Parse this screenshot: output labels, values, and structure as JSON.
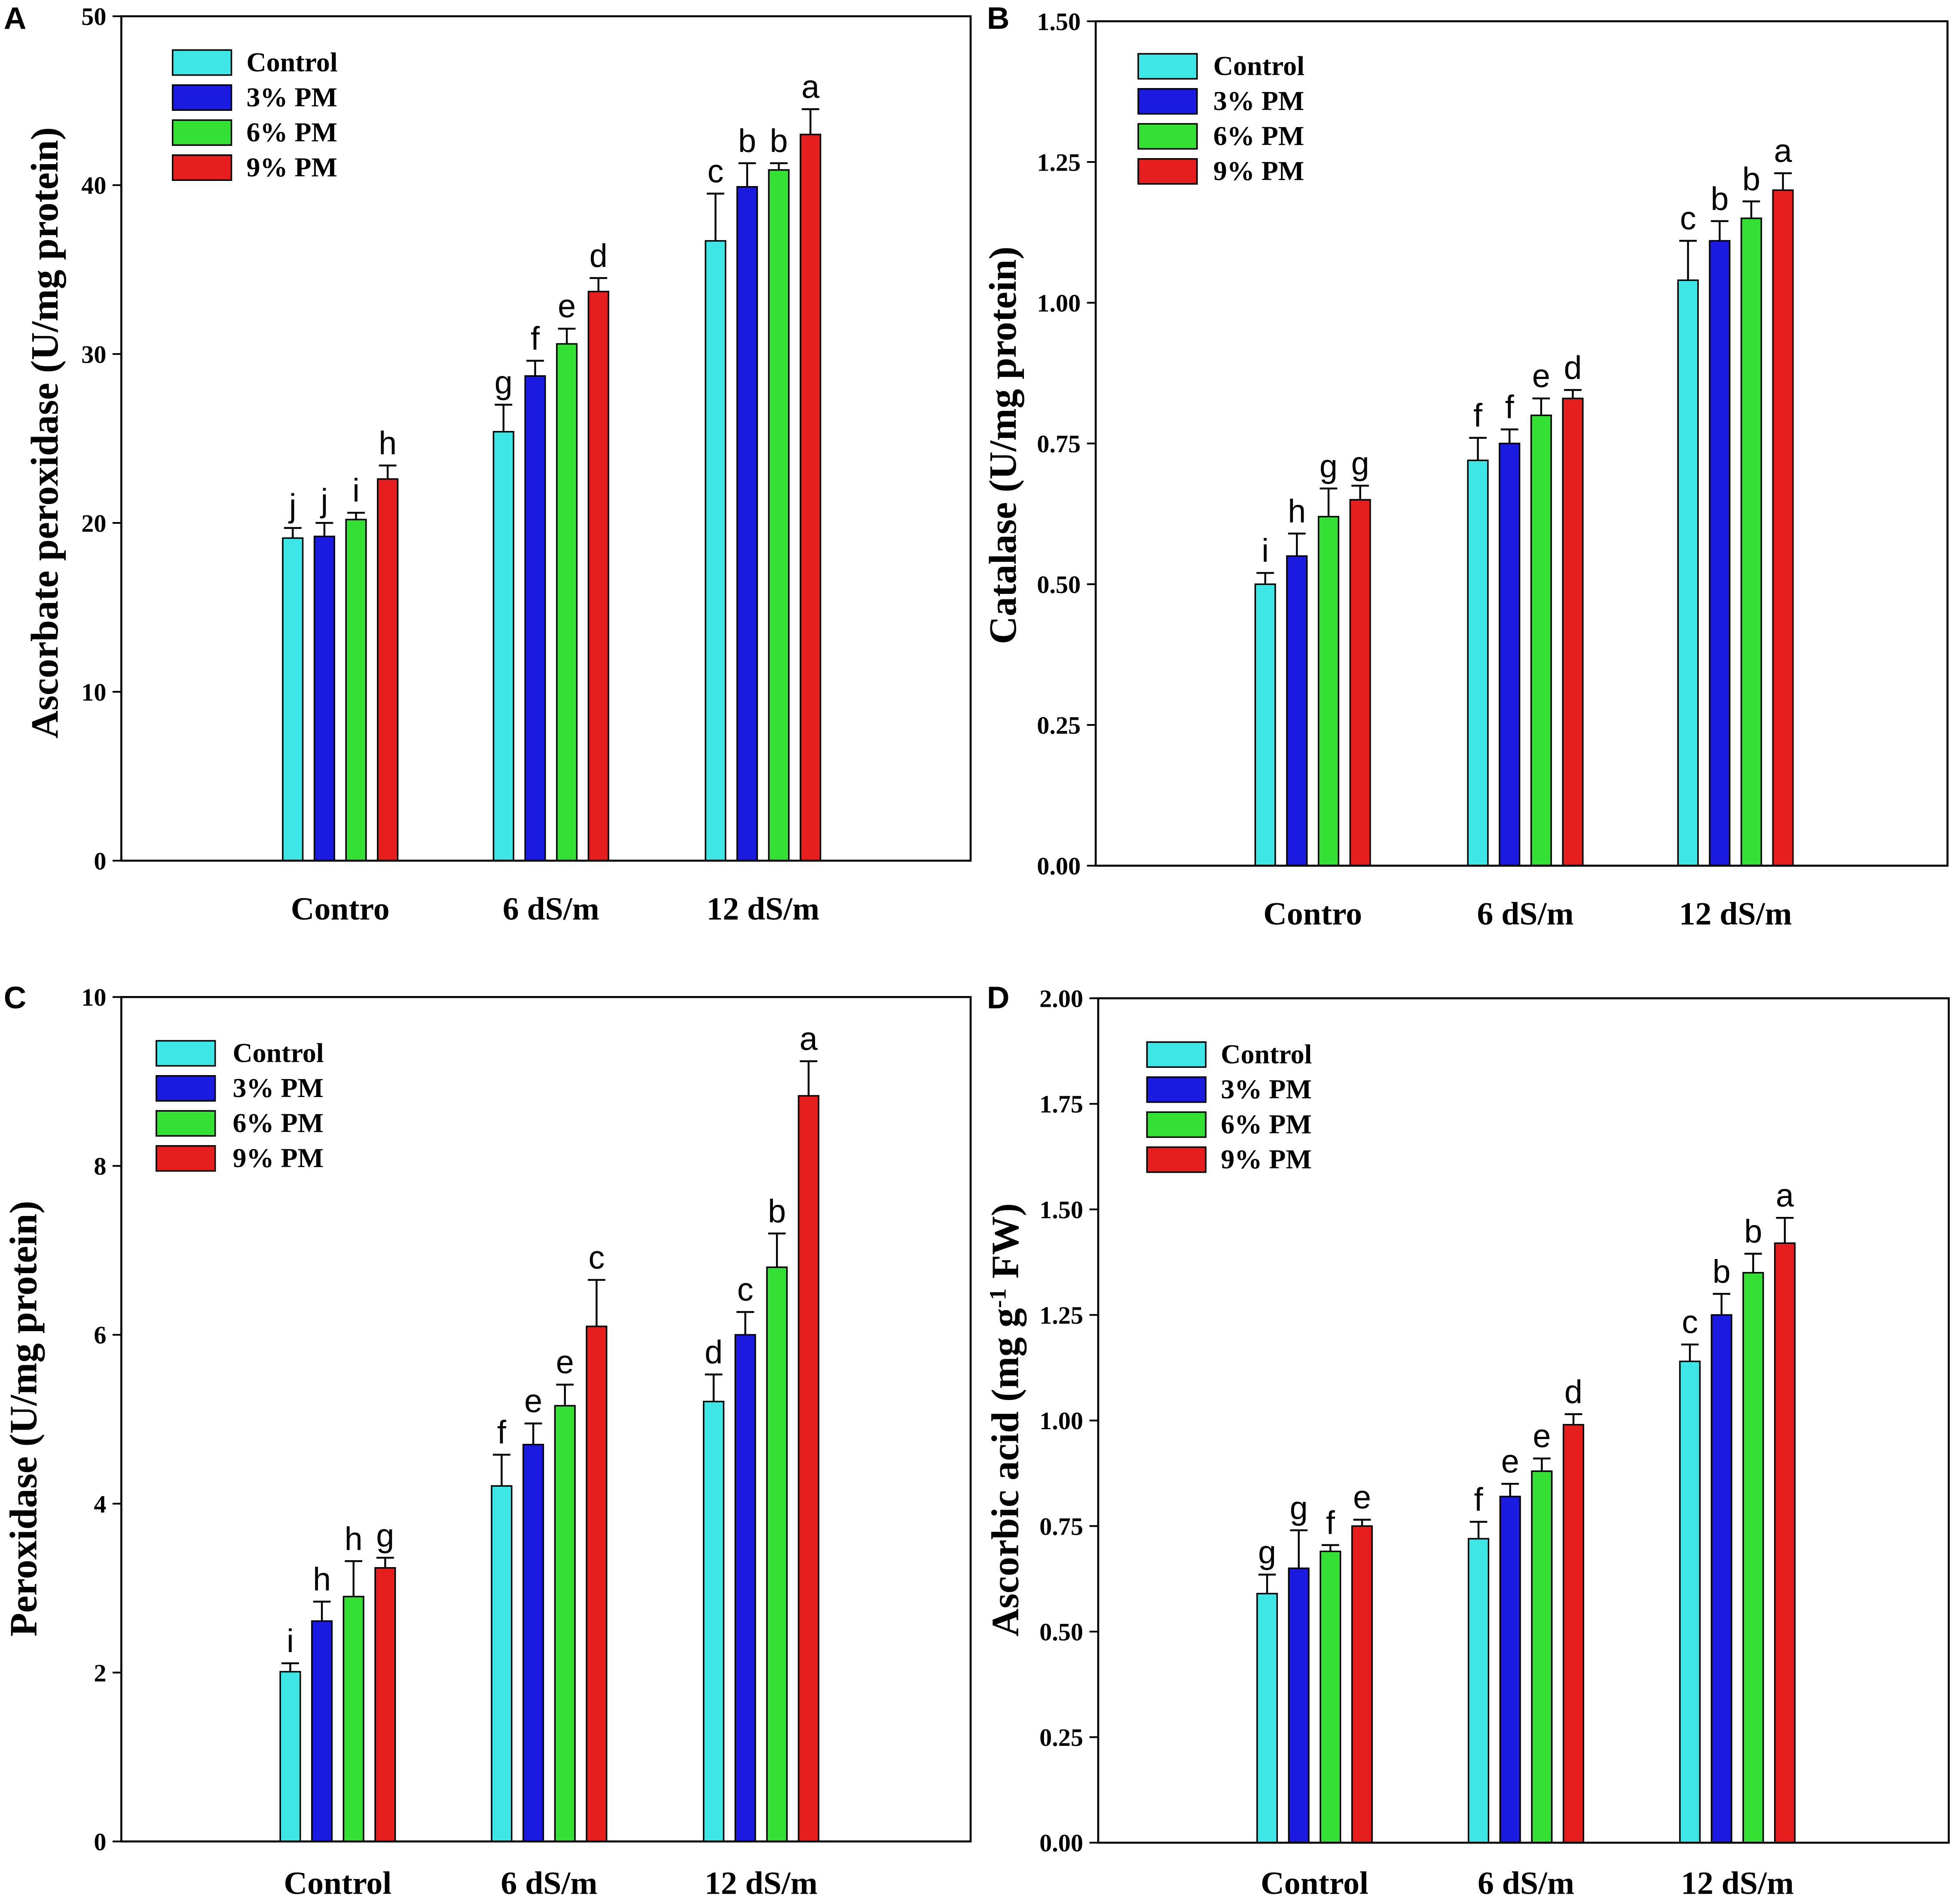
{
  "chart_data": [
    {
      "panel": "A",
      "type": "bar",
      "ylabel": "Ascorbate peroxidase (U/mg protein)",
      "ylim": [
        0,
        50
      ],
      "yticks": [
        "0",
        "10",
        "20",
        "30",
        "40",
        "50"
      ],
      "categories": [
        "Contro",
        "6 dS/m",
        "12 dS/m"
      ],
      "legend": "top-left",
      "grid": false,
      "series": [
        {
          "name": "Control",
          "color": "#3ee6e6",
          "values": [
            19.1,
            25.4,
            36.7
          ],
          "errors": [
            0.6,
            1.6,
            2.8
          ],
          "letters": [
            "j",
            "g",
            "c"
          ]
        },
        {
          "name": "3% PM",
          "color": "#1a1ae0",
          "values": [
            19.2,
            28.7,
            39.9
          ],
          "errors": [
            0.8,
            0.9,
            1.4
          ],
          "letters": [
            "j",
            "f",
            "b"
          ]
        },
        {
          "name": "6% PM",
          "color": "#33e033",
          "values": [
            20.2,
            30.6,
            40.9
          ],
          "errors": [
            0.4,
            0.9,
            0.4
          ],
          "letters": [
            "i",
            "e",
            "b"
          ]
        },
        {
          "name": "9% PM",
          "color": "#e61e1e",
          "values": [
            22.6,
            33.7,
            43.0
          ],
          "errors": [
            0.8,
            0.8,
            1.5
          ],
          "letters": [
            "h",
            "d",
            "a"
          ]
        }
      ]
    },
    {
      "panel": "B",
      "type": "bar",
      "ylabel": "Catalase (U/mg protein)",
      "ylim": [
        0,
        1.5
      ],
      "yticks": [
        "0.00",
        "0.25",
        "0.50",
        "0.75",
        "1.00",
        "1.25",
        "1.50"
      ],
      "categories": [
        "Contro",
        "6 dS/m",
        "12 dS/m"
      ],
      "legend": "top-left",
      "grid": false,
      "series": [
        {
          "name": "Control",
          "color": "#3ee6e6",
          "values": [
            0.5,
            0.72,
            1.04
          ],
          "errors": [
            0.02,
            0.04,
            0.07
          ],
          "letters": [
            "i",
            "f",
            "c"
          ]
        },
        {
          "name": "3% PM",
          "color": "#1a1ae0",
          "values": [
            0.55,
            0.75,
            1.11
          ],
          "errors": [
            0.04,
            0.025,
            0.035
          ],
          "letters": [
            "h",
            "f",
            "b"
          ]
        },
        {
          "name": "6% PM",
          "color": "#33e033",
          "values": [
            0.62,
            0.8,
            1.15
          ],
          "errors": [
            0.05,
            0.03,
            0.03
          ],
          "letters": [
            "g",
            "e",
            "b"
          ]
        },
        {
          "name": "9% PM",
          "color": "#e61e1e",
          "values": [
            0.65,
            0.83,
            1.2
          ],
          "errors": [
            0.025,
            0.015,
            0.03
          ],
          "letters": [
            "g",
            "d",
            "a"
          ]
        }
      ]
    },
    {
      "panel": "C",
      "type": "bar",
      "ylabel": "Peroxidase (U/mg protein)",
      "ylim": [
        0,
        10
      ],
      "yticks": [
        "0",
        "2",
        "4",
        "6",
        "8",
        "10"
      ],
      "categories": [
        "Control",
        "6 dS/m",
        "12 dS/m"
      ],
      "legend": "top-left",
      "grid": false,
      "series": [
        {
          "name": "Control",
          "color": "#3ee6e6",
          "values": [
            2.01,
            4.21,
            5.21
          ],
          "errors": [
            0.1,
            0.37,
            0.32
          ],
          "letters": [
            "i",
            "f",
            "d"
          ]
        },
        {
          "name": "3% PM",
          "color": "#1a1ae0",
          "values": [
            2.61,
            4.7,
            6.0
          ],
          "errors": [
            0.23,
            0.25,
            0.27
          ],
          "letters": [
            "h",
            "e",
            "c"
          ]
        },
        {
          "name": "6% PM",
          "color": "#33e033",
          "values": [
            2.9,
            5.16,
            6.8
          ],
          "errors": [
            0.42,
            0.25,
            0.4
          ],
          "letters": [
            "h",
            "e",
            "b"
          ]
        },
        {
          "name": "9% PM",
          "color": "#e61e1e",
          "values": [
            3.24,
            6.1,
            8.83
          ],
          "errors": [
            0.12,
            0.55,
            0.41
          ],
          "letters": [
            "g",
            "c",
            "a"
          ]
        }
      ]
    },
    {
      "panel": "D",
      "type": "bar",
      "ylabel": "Ascorbic acid (mg g",
      "ylabel_sup": "-1",
      "ylabel_tail": " FW)",
      "ylim": [
        0,
        2
      ],
      "yticks": [
        "0.00",
        "0.25",
        "0.50",
        "0.75",
        "1.00",
        "1.25",
        "1.50",
        "1.75",
        "2.00"
      ],
      "categories": [
        "Control",
        "6 dS/m",
        "12 dS/m"
      ],
      "legend": "top-left",
      "grid": false,
      "series": [
        {
          "name": "Control",
          "color": "#3ee6e6",
          "values": [
            0.59,
            0.72,
            1.14
          ],
          "errors": [
            0.045,
            0.04,
            0.04
          ],
          "letters": [
            "g",
            "f",
            "c"
          ]
        },
        {
          "name": "3% PM",
          "color": "#1a1ae0",
          "values": [
            0.65,
            0.82,
            1.25
          ],
          "errors": [
            0.09,
            0.03,
            0.05
          ],
          "letters": [
            "g",
            "e",
            "b"
          ]
        },
        {
          "name": "6% PM",
          "color": "#33e033",
          "values": [
            0.69,
            0.88,
            1.35
          ],
          "errors": [
            0.015,
            0.03,
            0.045
          ],
          "letters": [
            "f",
            "e",
            "b"
          ]
        },
        {
          "name": "9% PM",
          "color": "#e61e1e",
          "values": [
            0.75,
            0.99,
            1.42
          ],
          "errors": [
            0.015,
            0.025,
            0.06
          ],
          "letters": [
            "e",
            "d",
            "a"
          ]
        }
      ]
    }
  ]
}
